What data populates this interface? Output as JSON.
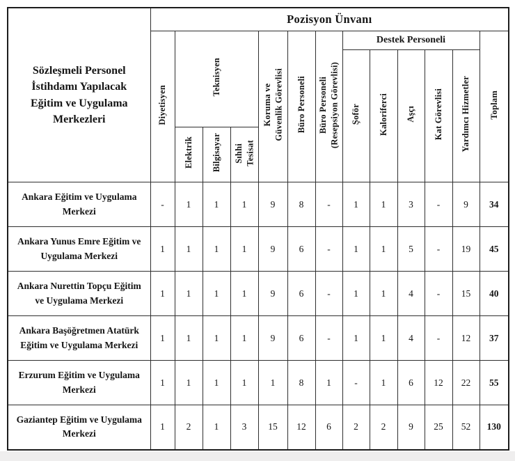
{
  "page": {
    "bottom_strip_color": "#efeeee"
  },
  "table": {
    "corner_header": "Sözleşmeli Personel\nİstihdamı Yapılacak\nEğitim ve Uygulama\nMerkezleri",
    "top_header": "Pozisyon Ünvanı",
    "teknisyen_group": "Teknisyen",
    "destek_group": "Destek Personeli",
    "vertical_headers": {
      "diyetisyen": "Diyetisyen",
      "elektrik": "Elektrik",
      "bilgisayar": "Bilgisayar",
      "sihhi_tesisat": "Sıhhi\nTesisat",
      "koruma": "Koruma ve\nGüvenlik Görevlisi",
      "buro": "Büro Personeli",
      "buro_resepsiyon": "Büro Personeli\n(Resepsiyon Görevlisi)",
      "sofor": "Şoför",
      "kaloriferci": "Kaloriferci",
      "asci": "Aşçı",
      "kat_gorevlisi": "Kat Görevlisi",
      "yardimci_hizmetler": "Yardımcı Hizmetler",
      "toplam": "Toplam"
    },
    "rows": [
      {
        "name": "Ankara Eğitim ve Uygulama\nMerkezi",
        "values": [
          "-",
          "1",
          "1",
          "1",
          "9",
          "8",
          "-",
          "1",
          "1",
          "3",
          "-",
          "9",
          "34"
        ]
      },
      {
        "name": "Ankara Yunus Emre Eğitim ve\nUygulama Merkezi",
        "values": [
          "1",
          "1",
          "1",
          "1",
          "9",
          "6",
          "-",
          "1",
          "1",
          "5",
          "-",
          "19",
          "45"
        ]
      },
      {
        "name": "Ankara Nurettin Topçu Eğitim\nve Uygulama Merkezi",
        "values": [
          "1",
          "1",
          "1",
          "1",
          "9",
          "6",
          "-",
          "1",
          "1",
          "4",
          "-",
          "15",
          "40"
        ]
      },
      {
        "name": "Ankara Başöğretmen Atatürk\nEğitim ve Uygulama Merkezi",
        "values": [
          "1",
          "1",
          "1",
          "1",
          "9",
          "6",
          "-",
          "1",
          "1",
          "4",
          "-",
          "12",
          "37"
        ]
      },
      {
        "name": "Erzurum Eğitim ve Uygulama\nMerkezi",
        "values": [
          "1",
          "1",
          "1",
          "1",
          "1",
          "8",
          "1",
          "-",
          "1",
          "6",
          "12",
          "22",
          "55"
        ]
      },
      {
        "name": "Gaziantep Eğitim ve Uygulama\nMerkezi",
        "values": [
          "1",
          "2",
          "1",
          "3",
          "15",
          "12",
          "6",
          "2",
          "2",
          "9",
          "25",
          "52",
          "130"
        ]
      }
    ]
  }
}
